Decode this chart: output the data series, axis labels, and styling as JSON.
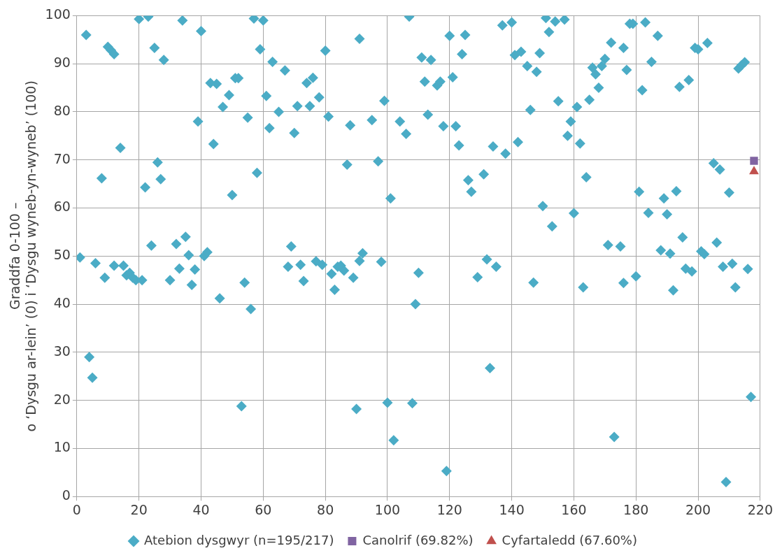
{
  "chart_data": {
    "type": "scatter",
    "ylabel": "Graddfa 0-100 –\no ‘Dysgu ar-lein’ (0) i ‘Dysgu wyneb-yn-wyneb’ (100)",
    "xlim": [
      0,
      220
    ],
    "ylim": [
      0,
      100
    ],
    "xticks": [
      0,
      20,
      40,
      60,
      80,
      100,
      120,
      140,
      160,
      180,
      200,
      220
    ],
    "yticks": [
      0,
      10,
      20,
      30,
      40,
      50,
      60,
      70,
      80,
      90,
      100
    ],
    "grid": true,
    "legend": "bottom",
    "series": [
      {
        "name": "Atebion dysgwyr (n=195/217)",
        "color": "#4bacc6",
        "marker": "diamond",
        "x": [
          1,
          3,
          4,
          5,
          6,
          8,
          9,
          10,
          11,
          12,
          12,
          14,
          15,
          16,
          17,
          18,
          19,
          20,
          21,
          22,
          23,
          24,
          25,
          26,
          27,
          28,
          30,
          32,
          33,
          34,
          35,
          36,
          37,
          38,
          39,
          40,
          41,
          42,
          43,
          44,
          45,
          46,
          47,
          49,
          50,
          51,
          52,
          53,
          54,
          55,
          56,
          57,
          58,
          59,
          60,
          61,
          62,
          63,
          65,
          67,
          68,
          69,
          70,
          71,
          72,
          73,
          74,
          75,
          76,
          77,
          78,
          79,
          80,
          81,
          82,
          83,
          84,
          85,
          86,
          87,
          88,
          89,
          90,
          91,
          91,
          92,
          95,
          97,
          98,
          99,
          100,
          101,
          102,
          104,
          106,
          107,
          108,
          109,
          110,
          111,
          112,
          113,
          114,
          116,
          117,
          118,
          119,
          120,
          121,
          122,
          123,
          124,
          125,
          126,
          127,
          129,
          131,
          132,
          133,
          134,
          135,
          137,
          138,
          140,
          141,
          142,
          143,
          145,
          146,
          147,
          148,
          149,
          150,
          151,
          152,
          153,
          154,
          155,
          157,
          158,
          159,
          160,
          161,
          162,
          163,
          164,
          165,
          166,
          167,
          168,
          169,
          170,
          171,
          172,
          173,
          175,
          176,
          176,
          177,
          178,
          179,
          180,
          181,
          182,
          183,
          184,
          185,
          187,
          188,
          189,
          190,
          191,
          192,
          193,
          194,
          195,
          196,
          197,
          198,
          199,
          200,
          201,
          202,
          203,
          205,
          206,
          207,
          208,
          209,
          210,
          211,
          212,
          213,
          214,
          215,
          216,
          217
        ],
        "values": [
          49.7,
          96,
          29,
          24.7,
          48.5,
          66.2,
          45.5,
          93.5,
          92.8,
          48,
          92,
          72.5,
          48,
          46,
          46.5,
          45.5,
          45,
          99.3,
          45,
          64.3,
          99.8,
          52.2,
          93.3,
          69.5,
          66,
          90.8,
          45,
          52.5,
          47.4,
          99,
          54,
          50.2,
          44,
          47.2,
          78,
          96.8,
          50,
          50.8,
          86,
          73.3,
          85.8,
          41.2,
          81,
          83.5,
          62.7,
          87,
          87,
          18.8,
          44.5,
          78.8,
          39,
          99.4,
          67.3,
          93,
          99,
          83.3,
          76.6,
          90.4,
          80,
          88.6,
          47.8,
          52,
          75.6,
          81.2,
          48.2,
          44.8,
          86,
          81.2,
          87.1,
          48.9,
          83,
          48.2,
          92.7,
          79,
          46.3,
          43,
          47.8,
          48,
          47,
          69,
          77.2,
          45.5,
          18.2,
          49,
          95.2,
          50.6,
          78.3,
          69.7,
          48.8,
          82.3,
          19.5,
          62,
          11.7,
          78,
          75.4,
          99.8,
          19.4,
          40,
          46.5,
          91.3,
          86.3,
          79.4,
          90.8,
          85.5,
          86.3,
          77,
          5.3,
          95.8,
          87.2,
          77,
          73,
          92,
          96,
          65.8,
          63.4,
          45.6,
          67,
          49.3,
          26.7,
          72.8,
          47.8,
          98,
          71.3,
          98.6,
          91.8,
          73.7,
          92.5,
          89.5,
          80.4,
          44.5,
          88.3,
          92.2,
          60.4,
          99.5,
          96.6,
          56.2,
          98.8,
          82.2,
          99.2,
          75,
          78,
          58.9,
          81,
          73.4,
          43.5,
          66.4,
          82.5,
          89.2,
          87.8,
          85,
          89.5,
          91,
          52.3,
          94.4,
          12.4,
          52,
          44.4,
          93.3,
          88.7,
          98.3,
          98.3,
          45.8,
          63.4,
          84.5,
          98.6,
          59,
          90.4,
          95.8,
          51.2,
          62,
          58.7,
          50.5,
          42.9,
          63.5,
          85.2,
          53.9,
          47.4,
          86.6,
          46.8,
          93.3,
          93,
          51,
          50.4,
          94.3,
          69.3,
          52.8,
          68,
          47.8,
          3,
          63.2,
          48.4,
          43.5,
          89,
          89.7,
          90.3,
          47.3,
          20.7
        ]
      },
      {
        "name": "Canolrif (69.82%)",
        "color": "#8064a2",
        "marker": "square",
        "x": [
          218
        ],
        "values": [
          69.82
        ]
      },
      {
        "name": "Cyfartaledd (67.60%)",
        "color": "#c0504d",
        "marker": "triangle",
        "x": [
          218
        ],
        "values": [
          67.6
        ]
      }
    ]
  }
}
